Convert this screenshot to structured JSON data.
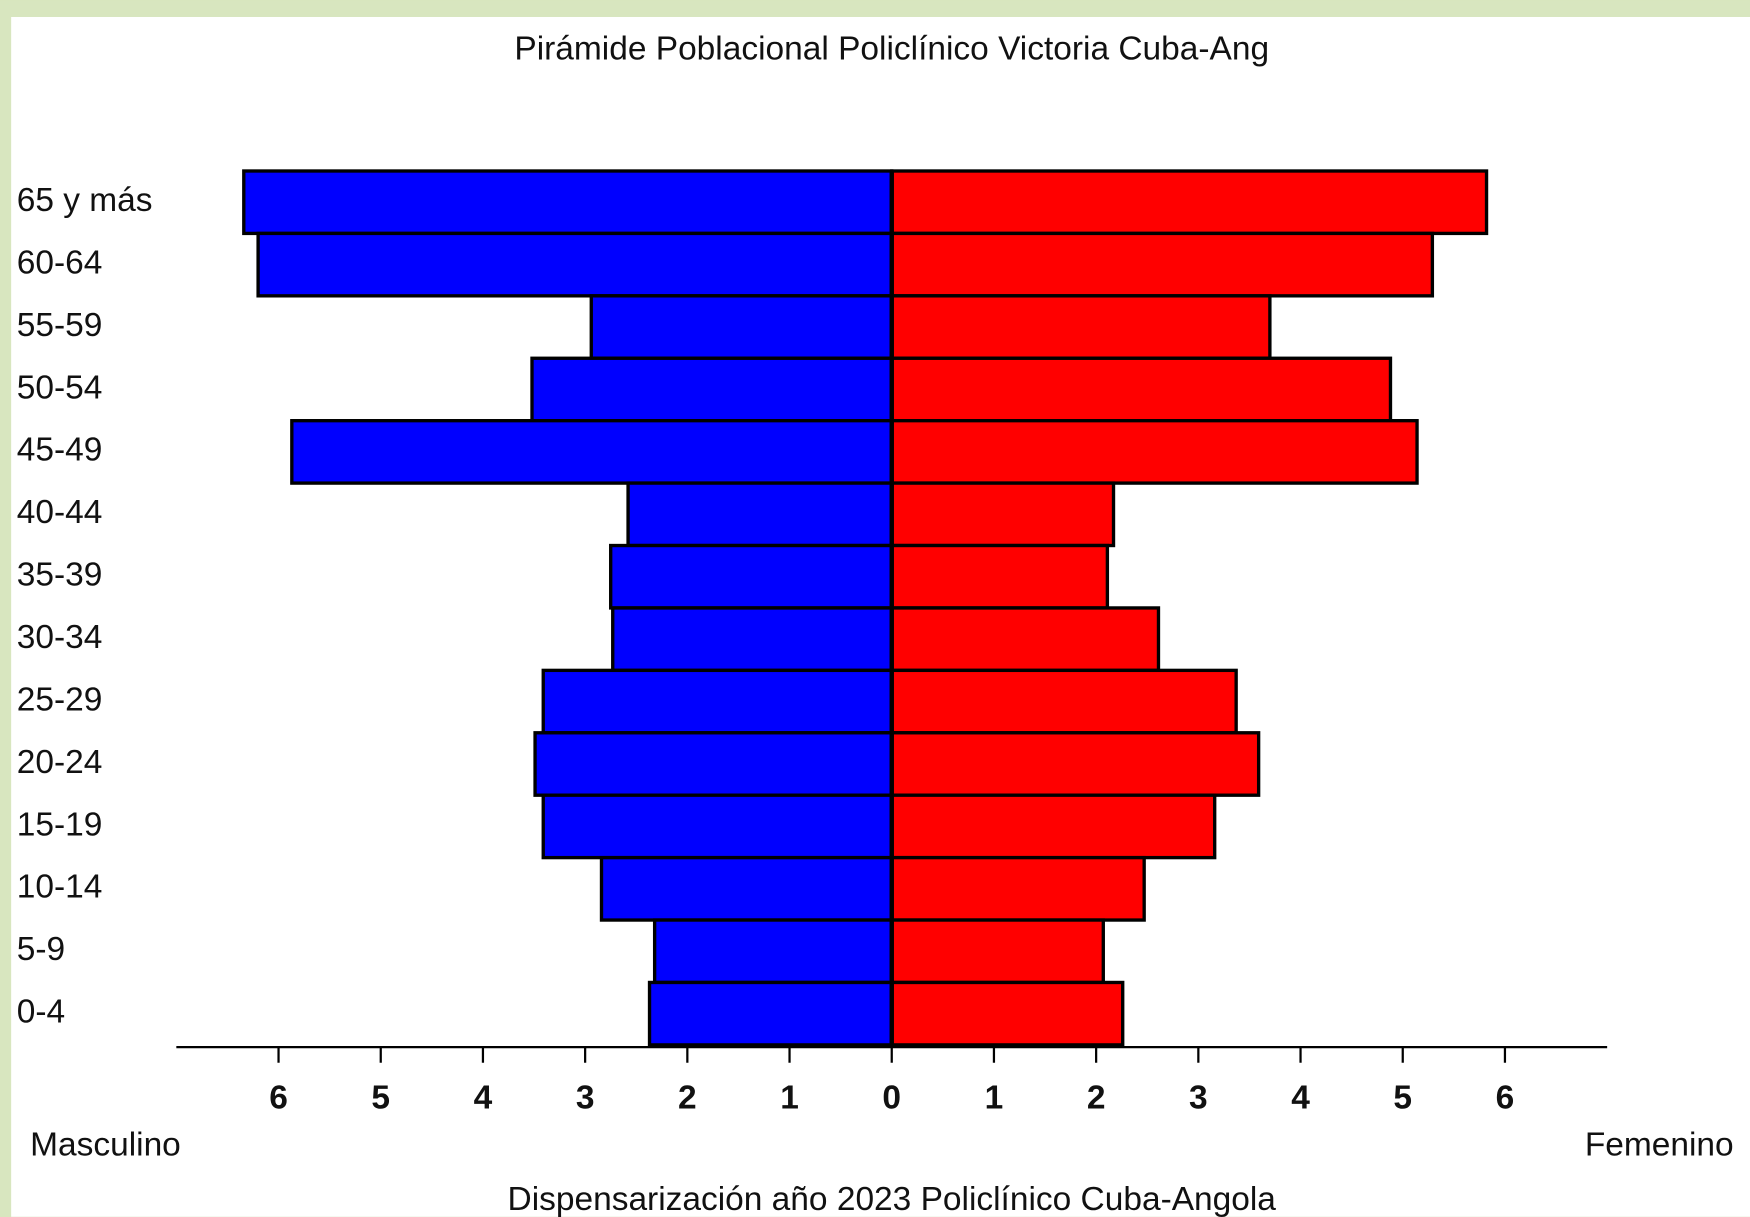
{
  "chart_data": {
    "type": "pyramid",
    "title": "Pirámide Poblacional Policlínico Victoria Cuba-Ang",
    "xlabel": "Dispensarización año 2023 Policlínico Cuba-Angola",
    "categories": [
      "65 y más",
      "60-64",
      "55-59",
      "50-54",
      "45-49",
      "40-44",
      "35-39",
      "30-34",
      "25-29",
      "20-24",
      "15-19",
      "10-14",
      "5-9",
      "0-4"
    ],
    "series": [
      {
        "name": "Masculino",
        "color": "#0000ff",
        "values": [
          6.34,
          6.2,
          2.94,
          3.52,
          5.87,
          2.58,
          2.75,
          2.73,
          3.41,
          3.49,
          3.41,
          2.84,
          2.32,
          2.37
        ]
      },
      {
        "name": "Femenino",
        "color": "#ff0000",
        "values": [
          5.82,
          5.29,
          3.7,
          4.88,
          5.14,
          2.17,
          2.11,
          2.61,
          3.37,
          3.59,
          3.16,
          2.47,
          2.07,
          2.26
        ]
      }
    ],
    "xlim": [
      -7,
      7
    ],
    "xticks": [
      {
        "value": -6,
        "label": "6"
      },
      {
        "value": -5,
        "label": "5"
      },
      {
        "value": -4,
        "label": "4"
      },
      {
        "value": -3,
        "label": "3"
      },
      {
        "value": -2,
        "label": "2"
      },
      {
        "value": -1,
        "label": "1"
      },
      0,
      1,
      2,
      3,
      4,
      5,
      6
    ]
  }
}
